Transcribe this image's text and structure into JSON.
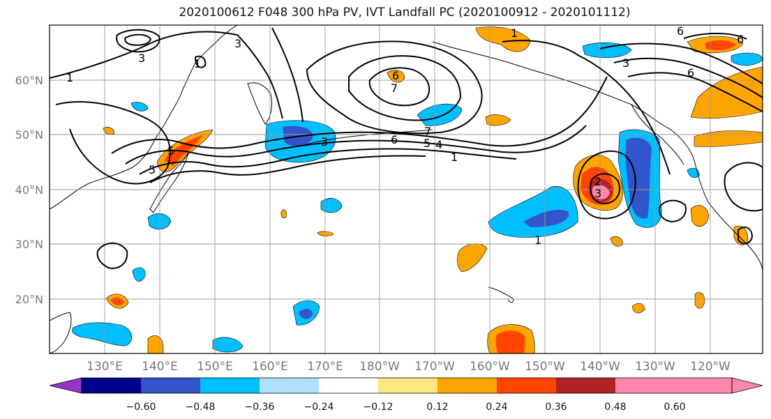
{
  "title": "2020100612 F048 300 hPa PV, IVT Landfall PC (2020100912 - 2020101112)",
  "map": {
    "lat_labels": [
      "60°N",
      "50°N",
      "40°N",
      "30°N",
      "20°N"
    ],
    "lon_labels": [
      "130°E",
      "140°E",
      "150°E",
      "160°E",
      "170°E",
      "180°W",
      "170°W",
      "160°W",
      "150°W",
      "140°W",
      "130°W",
      "120°W"
    ],
    "contour_labels": [
      "1",
      "3",
      "1",
      "5",
      "3",
      "6",
      "7",
      "7",
      "6",
      "5",
      "4",
      "1",
      "3",
      "6",
      "6",
      "1",
      "5",
      "3",
      "2",
      "3",
      "1",
      "6"
    ]
  },
  "colorbar": {
    "colors": [
      "#9933cc",
      "#00008b",
      "#3355cc",
      "#00bfff",
      "#b0e0ff",
      "#ffffff",
      "#ffe680",
      "#ffa500",
      "#ff4500",
      "#b22222",
      "#ff88aa"
    ],
    "tick_labels": [
      "−0.60",
      "−0.48",
      "−0.36",
      "−0.24",
      "−0.12",
      "0.12",
      "0.24",
      "0.36",
      "0.48",
      "0.60"
    ]
  }
}
